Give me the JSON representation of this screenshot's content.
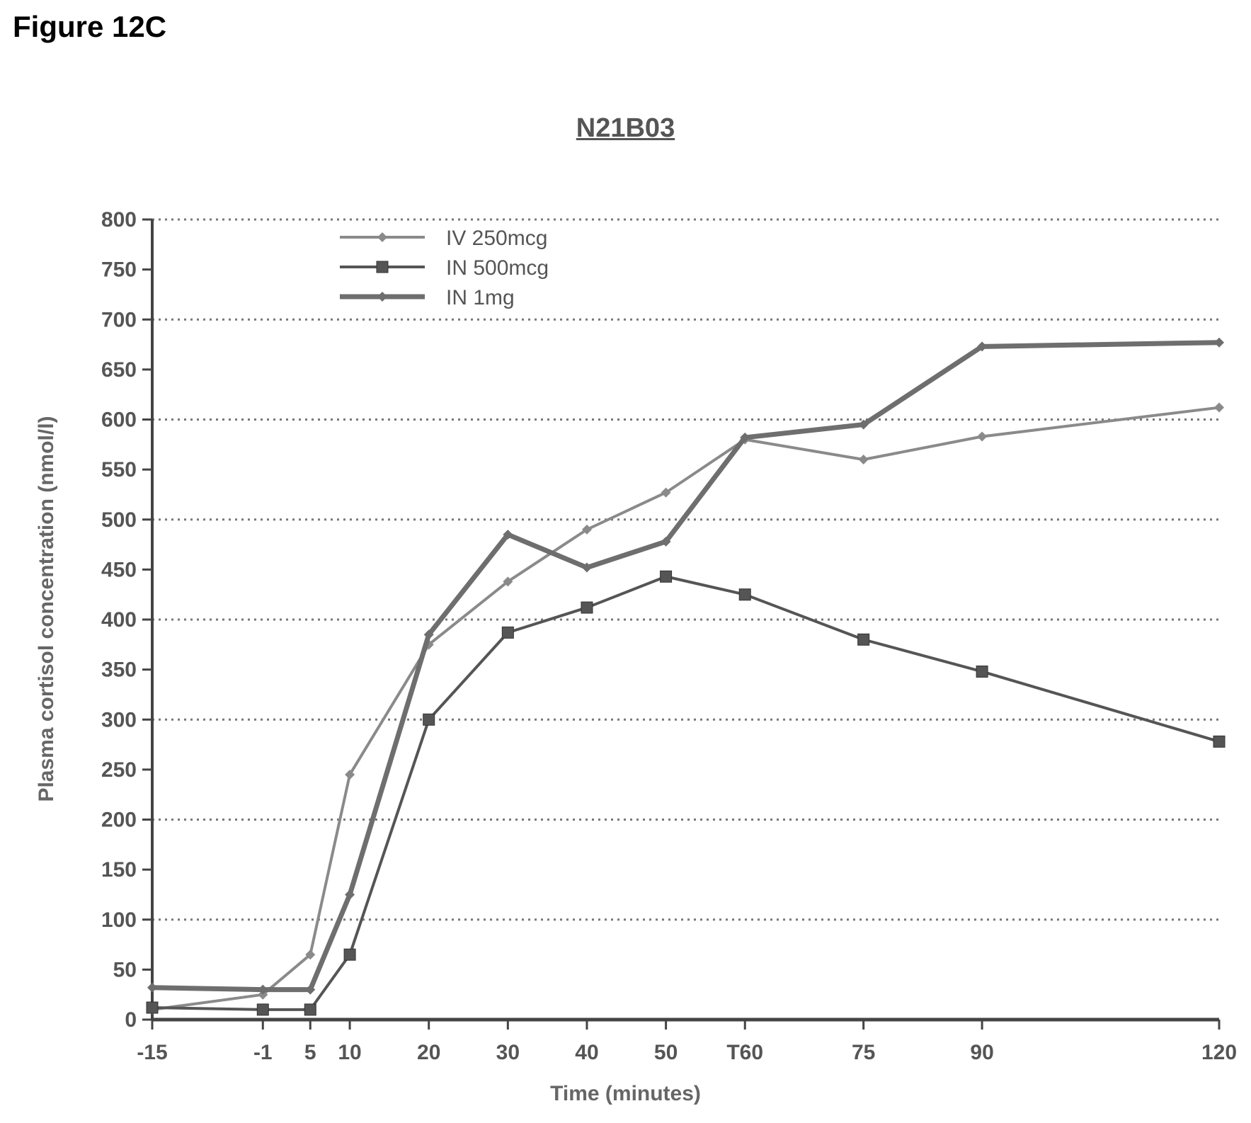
{
  "figure_label": "Figure 12C",
  "chart_data": {
    "type": "line",
    "title": "N21B03",
    "xlabel": "Time (minutes)",
    "ylabel": "Plasma cortisol concentration (nmol/l)",
    "x_is_categorical_spacing_numeric": true,
    "x": [
      -15,
      -1,
      5,
      10,
      20,
      30,
      40,
      50,
      60,
      75,
      90,
      120
    ],
    "x_tick_labels": [
      "-15",
      "-1",
      "5",
      "10",
      "20",
      "30",
      "40",
      "50",
      "T60",
      "75",
      "90",
      "120"
    ],
    "xlim": [
      -15,
      120
    ],
    "ylim": [
      0,
      800
    ],
    "y_ticks": [
      0,
      50,
      100,
      150,
      200,
      250,
      300,
      350,
      400,
      450,
      500,
      550,
      600,
      650,
      700,
      750,
      800
    ],
    "grid": "horizontal dotted every 100",
    "legend_position": "top-left",
    "series": [
      {
        "name": "IV 250mcg",
        "color": "#8a8a8a",
        "marker": "diamond",
        "values": [
          10,
          25,
          65,
          245,
          375,
          438,
          490,
          527,
          580,
          560,
          583,
          612
        ]
      },
      {
        "name": "IN 500mcg",
        "color": "#555555",
        "marker": "square",
        "values": [
          12,
          10,
          10,
          65,
          300,
          387,
          412,
          443,
          425,
          380,
          348,
          278
        ]
      },
      {
        "name": "IN 1mg",
        "color": "#6e6e6e",
        "marker": "diamond",
        "values": [
          32,
          30,
          30,
          125,
          385,
          485,
          452,
          478,
          582,
          595,
          673,
          677
        ]
      }
    ]
  }
}
